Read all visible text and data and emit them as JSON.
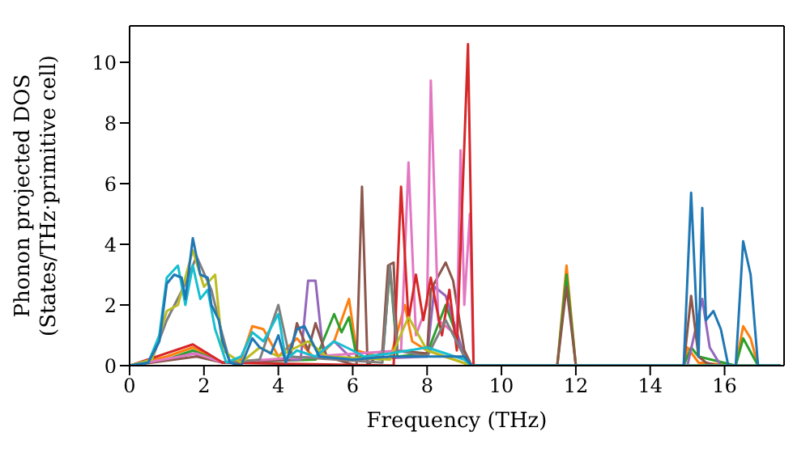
{
  "chart_data": {
    "type": "line",
    "xlabel": "Frequency (THz)",
    "ylabel": "Phonon projected DOS\n(States/THz·primitive cell)",
    "xlim": [
      0,
      17.6
    ],
    "ylim": [
      0,
      11.2
    ],
    "xticks": [
      0,
      2,
      4,
      6,
      8,
      10,
      12,
      14,
      16
    ],
    "yticks": [
      0,
      2,
      4,
      6,
      8,
      10
    ],
    "marker": "none",
    "line_style": "solid",
    "series": [
      {
        "color": "#ff7f0e",
        "x": [
          0,
          1.0,
          1.7,
          2.5,
          3.0,
          3.3,
          3.6,
          4.0,
          4.5,
          5.0,
          5.5,
          5.9,
          6.1,
          7.0,
          7.4,
          7.6,
          8.0,
          9.2,
          11.5,
          11.75,
          12.0,
          14.9,
          15.0,
          15.3,
          16.3,
          16.5,
          16.7,
          16.9,
          17.5
        ],
        "values": [
          0,
          0.3,
          0.6,
          0.1,
          0.2,
          1.3,
          1.2,
          0.3,
          0.9,
          0.2,
          0.8,
          2.2,
          0.5,
          0.2,
          2.0,
          0.8,
          0.5,
          0,
          0,
          3.3,
          0,
          0,
          0.6,
          0.1,
          0,
          1.3,
          0.9,
          0,
          0
        ]
      },
      {
        "color": "#2ca02c",
        "x": [
          0,
          1.0,
          1.7,
          2.5,
          5.0,
          5.2,
          5.5,
          5.7,
          5.9,
          6.1,
          6.8,
          7.0,
          7.2,
          8.0,
          8.5,
          9.0,
          9.2,
          11.5,
          11.75,
          12.0,
          14.9,
          15.1,
          15.3,
          16.3,
          16.5,
          16.9,
          17.5
        ],
        "values": [
          0,
          0.2,
          0.5,
          0.1,
          0.2,
          0.8,
          1.7,
          1.1,
          1.6,
          0.3,
          0.2,
          3.2,
          0.3,
          0.4,
          2.0,
          0.3,
          0,
          0,
          3.0,
          0,
          0,
          0.6,
          0.3,
          0,
          0.9,
          0,
          0
        ]
      },
      {
        "color": "#9467bd",
        "x": [
          0,
          1.0,
          1.7,
          2.5,
          4.6,
          4.8,
          5.0,
          5.2,
          5.5,
          6.0,
          8.0,
          8.2,
          8.5,
          9.0,
          9.2,
          15.0,
          15.4,
          15.6,
          15.9,
          17.5
        ],
        "values": [
          0,
          0.2,
          0.4,
          0.1,
          0.2,
          2.8,
          2.8,
          0.5,
          0.8,
          0.2,
          0.3,
          2.6,
          2.3,
          0.3,
          0,
          0,
          2.2,
          0.6,
          0,
          0
        ]
      },
      {
        "color": "#8c564b",
        "x": [
          0,
          1.8,
          2.5,
          4.3,
          4.5,
          4.8,
          5.0,
          5.3,
          6.1,
          6.25,
          6.4,
          6.8,
          6.95,
          7.1,
          7.2,
          8.0,
          8.1,
          8.5,
          8.7,
          9.0,
          9.2,
          11.5,
          11.75,
          12.0,
          14.9,
          15.1,
          15.3,
          15.5,
          15.8,
          17.5
        ],
        "values": [
          0,
          0.3,
          0.1,
          0.2,
          1.4,
          0.5,
          1.4,
          0.3,
          0,
          5.9,
          0,
          0.5,
          3.3,
          3.4,
          0.5,
          0.4,
          2.5,
          3.4,
          2.8,
          0.5,
          0,
          0,
          2.6,
          0,
          0,
          2.3,
          0.3,
          0.1,
          0,
          0
        ]
      },
      {
        "color": "#e377c2",
        "x": [
          0,
          1.8,
          2.5,
          7.3,
          7.5,
          7.7,
          8.0,
          8.1,
          8.3,
          8.8,
          8.9,
          9.0,
          9.15,
          9.25,
          17.5
        ],
        "values": [
          0,
          0.4,
          0.1,
          0.5,
          6.7,
          1.0,
          2.0,
          9.4,
          1.5,
          1.0,
          7.1,
          2.0,
          5.0,
          0,
          0
        ]
      },
      {
        "color": "#d62728",
        "x": [
          0,
          1.7,
          2.5,
          7.1,
          7.3,
          7.5,
          7.7,
          7.9,
          8.1,
          8.4,
          8.6,
          8.8,
          9.1,
          9.25,
          17.5
        ],
        "values": [
          0,
          0.7,
          0.1,
          0,
          5.9,
          1.5,
          3.0,
          1.5,
          2.9,
          1.0,
          2.5,
          0.5,
          10.6,
          0,
          0
        ]
      },
      {
        "color": "#7f7f7f",
        "x": [
          0,
          0.6,
          1.0,
          1.5,
          1.8,
          2.2,
          2.5,
          2.7,
          3.5,
          4.0,
          4.3,
          6.8,
          7.0,
          7.2,
          8.0,
          8.5,
          9.0,
          9.2,
          17.5
        ],
        "values": [
          0,
          0.2,
          1.5,
          2.7,
          3.6,
          2.5,
          1.0,
          0.1,
          0.2,
          2.0,
          0.3,
          0.1,
          3.3,
          0.5,
          0.3,
          1.5,
          0.3,
          0,
          0
        ]
      },
      {
        "color": "#bcbd22",
        "x": [
          0,
          0.6,
          1.0,
          1.3,
          1.7,
          2.0,
          2.3,
          2.5,
          3.0,
          3.5,
          4.0,
          4.8,
          5.3,
          7.0,
          7.5,
          8.0,
          9.2,
          17.5
        ],
        "values": [
          0,
          0.2,
          1.8,
          2.0,
          3.8,
          2.6,
          3.0,
          0.5,
          0.1,
          0.6,
          0.3,
          0.8,
          0.3,
          0.2,
          1.6,
          0.5,
          0,
          0
        ]
      },
      {
        "color": "#17becf",
        "x": [
          0,
          0.5,
          0.8,
          1.0,
          1.3,
          1.5,
          1.7,
          1.9,
          2.1,
          2.3,
          2.6,
          3.0,
          3.3,
          3.6,
          4.0,
          4.2,
          4.5,
          5.0,
          5.5,
          6.0,
          6.3,
          7.0,
          8.0,
          9.0,
          9.2,
          17.5
        ],
        "values": [
          0,
          0.1,
          1.0,
          2.9,
          3.3,
          2.0,
          3.3,
          2.2,
          2.5,
          1.2,
          0.1,
          0.3,
          1.1,
          0.8,
          1.7,
          0.2,
          0.5,
          0.3,
          0.8,
          0.5,
          0.3,
          0.4,
          0.6,
          0.2,
          0,
          0
        ]
      },
      {
        "color": "#1f77b4",
        "x": [
          0,
          0.5,
          0.8,
          1.0,
          1.2,
          1.4,
          1.5,
          1.7,
          1.9,
          2.1,
          2.2,
          2.4,
          2.5,
          2.7,
          3.0,
          3.3,
          3.5,
          3.8,
          4.0,
          4.2,
          4.5,
          4.7,
          4.9,
          5.1,
          6.0,
          7.0,
          8.0,
          9.0,
          9.2,
          14.9,
          15.1,
          15.3,
          15.4,
          15.5,
          15.7,
          15.9,
          16.1,
          16.3,
          16.5,
          16.7,
          16.9,
          17.5
        ],
        "values": [
          0,
          0.1,
          0.8,
          2.7,
          3.0,
          2.9,
          2.2,
          4.2,
          3.0,
          2.9,
          2.0,
          1.5,
          0.8,
          0.1,
          0,
          0.9,
          0.6,
          0.4,
          1.0,
          0.1,
          1.2,
          1.3,
          0.8,
          0.3,
          0.2,
          0.3,
          0.3,
          0.3,
          0,
          0,
          5.7,
          0.3,
          5.2,
          1.5,
          1.8,
          1.2,
          0,
          0,
          4.1,
          3.0,
          0,
          0
        ]
      }
    ]
  }
}
